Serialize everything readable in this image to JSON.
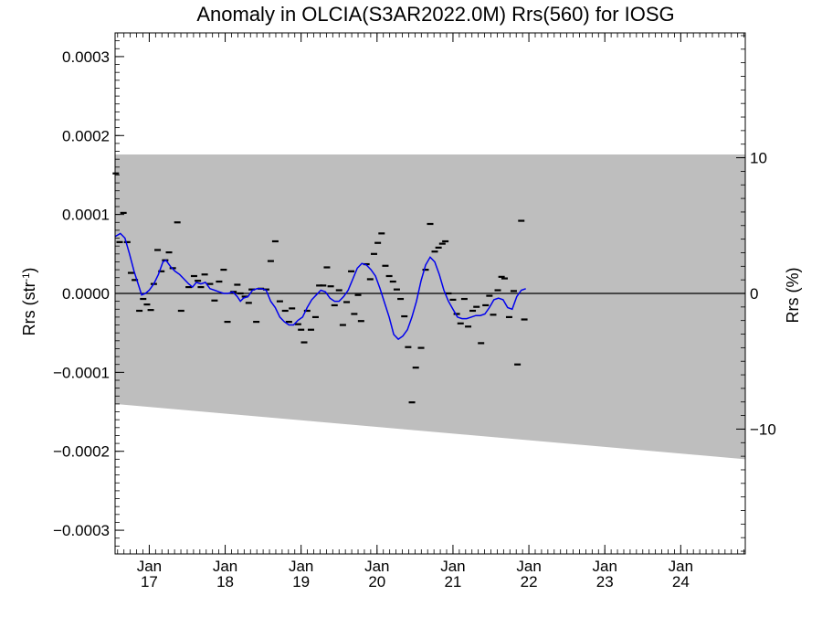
{
  "chart_data": {
    "type": "scatter",
    "title": "Anomaly in OLCIA(S3AR2022.0M) Rrs(560) for IOSG",
    "ylabel_left_base": "Rrs (str",
    "ylabel_left_exp": "-1",
    "ylabel_left_tail": ")",
    "ylabel_right": "Rrs (%)",
    "x_unit": "year",
    "xlim": [
      2016.55,
      2024.85
    ],
    "ylim": [
      -0.00033,
      0.00033
    ],
    "ylim_right_percent": [
      -19.2,
      19.2
    ],
    "grid": false,
    "x_ticks": [
      {
        "month": "Jan",
        "year": "17",
        "x": 2017.0
      },
      {
        "month": "Jan",
        "year": "18",
        "x": 2018.0
      },
      {
        "month": "Jan",
        "year": "19",
        "x": 2019.0
      },
      {
        "month": "Jan",
        "year": "20",
        "x": 2020.0
      },
      {
        "month": "Jan",
        "year": "21",
        "x": 2021.0
      },
      {
        "month": "Jan",
        "year": "22",
        "x": 2022.0
      },
      {
        "month": "Jan",
        "year": "23",
        "x": 2023.0
      },
      {
        "month": "Jan",
        "year": "24",
        "x": 2024.0
      }
    ],
    "y_ticks_left": [
      {
        "label": "0.0003",
        "v": 0.0003
      },
      {
        "label": "0.0002",
        "v": 0.0002
      },
      {
        "label": "0.0001",
        "v": 0.0001
      },
      {
        "label": "0.0000",
        "v": 0.0
      },
      {
        "label": "−0.0001",
        "v": -0.0001
      },
      {
        "label": "−0.0002",
        "v": -0.0002
      },
      {
        "label": "−0.0003",
        "v": -0.0003
      }
    ],
    "y_ticks_right": [
      {
        "label": "10",
        "v": 10
      },
      {
        "label": "0",
        "v": 0
      },
      {
        "label": "−10",
        "v": -10
      }
    ],
    "band": {
      "color": "#bebebe",
      "x": [
        2016.55,
        2024.85
      ],
      "upper": [
        0.000176,
        0.000176
      ],
      "lower": [
        -0.00014,
        -0.00021
      ]
    },
    "zero_line_color": "#000000",
    "smoothed_color": "#0000ee",
    "marker_color": "#000000",
    "points": [
      [
        2016.56,
        0.000152
      ],
      [
        2016.61,
        6.5e-05
      ],
      [
        2016.66,
        0.000102
      ],
      [
        2016.71,
        6.5e-05
      ],
      [
        2016.76,
        2.6e-05
      ],
      [
        2016.81,
        1.7e-05
      ],
      [
        2016.87,
        -2.2e-05
      ],
      [
        2016.92,
        -7e-06
      ],
      [
        2016.97,
        -1.4e-05
      ],
      [
        2017.02,
        -2.1e-05
      ],
      [
        2017.06,
        1.2e-05
      ],
      [
        2017.11,
        5.5e-05
      ],
      [
        2017.16,
        2.8e-05
      ],
      [
        2017.21,
        4.2e-05
      ],
      [
        2017.26,
        5.2e-05
      ],
      [
        2017.31,
        3.2e-05
      ],
      [
        2017.37,
        9e-05
      ],
      [
        2017.42,
        -2.2e-05
      ],
      [
        2017.52,
        8e-06
      ],
      [
        2017.59,
        2.2e-05
      ],
      [
        2017.64,
        1.6e-05
      ],
      [
        2017.68,
        8e-06
      ],
      [
        2017.73,
        2.4e-05
      ],
      [
        2017.8,
        1.2e-05
      ],
      [
        2017.86,
        -9e-06
      ],
      [
        2017.92,
        1.5e-05
      ],
      [
        2017.98,
        3e-05
      ],
      [
        2018.03,
        -3.6e-05
      ],
      [
        2018.11,
        2e-06
      ],
      [
        2018.16,
        1.1e-05
      ],
      [
        2018.2,
        0.0
      ],
      [
        2018.26,
        -4e-06
      ],
      [
        2018.31,
        -1.2e-05
      ],
      [
        2018.35,
        5e-06
      ],
      [
        2018.41,
        -3.6e-05
      ],
      [
        2018.47,
        6e-06
      ],
      [
        2018.54,
        5e-06
      ],
      [
        2018.6,
        4.1e-05
      ],
      [
        2018.66,
        6.6e-05
      ],
      [
        2018.72,
        -1e-05
      ],
      [
        2018.79,
        -2.2e-05
      ],
      [
        2018.84,
        -3.6e-05
      ],
      [
        2018.88,
        -1.9e-05
      ],
      [
        2018.96,
        -3.9e-05
      ],
      [
        2019.0,
        -4.6e-05
      ],
      [
        2019.04,
        -6.2e-05
      ],
      [
        2019.08,
        -2.2e-05
      ],
      [
        2019.13,
        -4.6e-05
      ],
      [
        2019.19,
        -3e-05
      ],
      [
        2019.24,
        1e-05
      ],
      [
        2019.29,
        1e-05
      ],
      [
        2019.34,
        3.3e-05
      ],
      [
        2019.39,
        9e-06
      ],
      [
        2019.44,
        -1.5e-05
      ],
      [
        2019.5,
        4e-06
      ],
      [
        2019.55,
        -4e-05
      ],
      [
        2019.6,
        -1.1e-05
      ],
      [
        2019.66,
        2.8e-05
      ],
      [
        2019.7,
        -2.6e-05
      ],
      [
        2019.75,
        -2e-06
      ],
      [
        2019.79,
        -3.5e-05
      ],
      [
        2019.86,
        3.7e-05
      ],
      [
        2019.91,
        1.8e-05
      ],
      [
        2019.96,
        5e-05
      ],
      [
        2020.01,
        6.4e-05
      ],
      [
        2020.06,
        7.6e-05
      ],
      [
        2020.11,
        3.5e-05
      ],
      [
        2020.16,
        2.2e-05
      ],
      [
        2020.21,
        1.5e-05
      ],
      [
        2020.26,
        5e-06
      ],
      [
        2020.31,
        -7e-06
      ],
      [
        2020.36,
        -2.9e-05
      ],
      [
        2020.41,
        -6.8e-05
      ],
      [
        2020.46,
        -0.000138
      ],
      [
        2020.51,
        -9.4e-05
      ],
      [
        2020.58,
        -6.9e-05
      ],
      [
        2020.64,
        3e-05
      ],
      [
        2020.7,
        8.8e-05
      ],
      [
        2020.76,
        5.3e-05
      ],
      [
        2020.81,
        5.8e-05
      ],
      [
        2020.86,
        6.3e-05
      ],
      [
        2020.9,
        6.6e-05
      ],
      [
        2020.94,
        0.0
      ],
      [
        2021.0,
        -8e-06
      ],
      [
        2021.05,
        -2.6e-05
      ],
      [
        2021.1,
        -3.8e-05
      ],
      [
        2021.15,
        -7e-06
      ],
      [
        2021.2,
        -4.2e-05
      ],
      [
        2021.26,
        -2.2e-05
      ],
      [
        2021.31,
        -1.7e-05
      ],
      [
        2021.37,
        -6.3e-05
      ],
      [
        2021.43,
        -1.5e-05
      ],
      [
        2021.48,
        -3e-06
      ],
      [
        2021.53,
        -2.7e-05
      ],
      [
        2021.59,
        4e-06
      ],
      [
        2021.64,
        2.1e-05
      ],
      [
        2021.68,
        1.9e-05
      ],
      [
        2021.74,
        -3e-05
      ],
      [
        2021.8,
        3e-06
      ],
      [
        2021.85,
        -9e-05
      ],
      [
        2021.9,
        9.2e-05
      ],
      [
        2021.94,
        -3.3e-05
      ]
    ],
    "smoothed": [
      [
        2016.55,
        7.2e-05
      ],
      [
        2016.62,
        7.6e-05
      ],
      [
        2016.68,
        7e-05
      ],
      [
        2016.74,
        5e-05
      ],
      [
        2016.8,
        2.8e-05
      ],
      [
        2016.86,
        1e-05
      ],
      [
        2016.9,
        -2e-06
      ],
      [
        2016.95,
        0.0
      ],
      [
        2017.0,
        4e-06
      ],
      [
        2017.06,
        1.2e-05
      ],
      [
        2017.12,
        2.4e-05
      ],
      [
        2017.18,
        4e-05
      ],
      [
        2017.22,
        4.2e-05
      ],
      [
        2017.28,
        3.4e-05
      ],
      [
        2017.34,
        2.8e-05
      ],
      [
        2017.4,
        2.4e-05
      ],
      [
        2017.46,
        1.8e-05
      ],
      [
        2017.52,
        1.2e-05
      ],
      [
        2017.57,
        8e-06
      ],
      [
        2017.62,
        1.4e-05
      ],
      [
        2017.68,
        1.2e-05
      ],
      [
        2017.74,
        1.4e-05
      ],
      [
        2017.8,
        6e-06
      ],
      [
        2017.86,
        4e-06
      ],
      [
        2017.92,
        2e-06
      ],
      [
        2017.98,
        0.0
      ],
      [
        2018.04,
        0.0
      ],
      [
        2018.1,
        2e-06
      ],
      [
        2018.16,
        -4e-06
      ],
      [
        2018.2,
        -1e-05
      ],
      [
        2018.24,
        -6e-06
      ],
      [
        2018.3,
        -4e-06
      ],
      [
        2018.36,
        4e-06
      ],
      [
        2018.42,
        6e-06
      ],
      [
        2018.48,
        6e-06
      ],
      [
        2018.54,
        4e-06
      ],
      [
        2018.6,
        -1e-05
      ],
      [
        2018.66,
        -1.8e-05
      ],
      [
        2018.72,
        -3e-05
      ],
      [
        2018.78,
        -3.6e-05
      ],
      [
        2018.84,
        -4e-05
      ],
      [
        2018.9,
        -4e-05
      ],
      [
        2018.96,
        -3.4e-05
      ],
      [
        2019.02,
        -3e-05
      ],
      [
        2019.08,
        -1.8e-05
      ],
      [
        2019.14,
        -8e-06
      ],
      [
        2019.2,
        -2e-06
      ],
      [
        2019.26,
        4e-06
      ],
      [
        2019.32,
        2e-06
      ],
      [
        2019.38,
        -6e-06
      ],
      [
        2019.44,
        -1e-05
      ],
      [
        2019.5,
        -1e-05
      ],
      [
        2019.56,
        -4e-06
      ],
      [
        2019.62,
        4e-06
      ],
      [
        2019.68,
        1.8e-05
      ],
      [
        2019.74,
        3.2e-05
      ],
      [
        2019.8,
        3.8e-05
      ],
      [
        2019.86,
        3.6e-05
      ],
      [
        2019.92,
        3e-05
      ],
      [
        2019.98,
        2.2e-05
      ],
      [
        2020.04,
        6e-06
      ],
      [
        2020.1,
        -1.2e-05
      ],
      [
        2020.16,
        -3e-05
      ],
      [
        2020.22,
        -5.2e-05
      ],
      [
        2020.28,
        -5.8e-05
      ],
      [
        2020.34,
        -5.4e-05
      ],
      [
        2020.4,
        -4.6e-05
      ],
      [
        2020.46,
        -3e-05
      ],
      [
        2020.52,
        -1e-05
      ],
      [
        2020.58,
        1.6e-05
      ],
      [
        2020.64,
        3.6e-05
      ],
      [
        2020.7,
        4.6e-05
      ],
      [
        2020.76,
        4e-05
      ],
      [
        2020.82,
        2.4e-05
      ],
      [
        2020.88,
        4e-06
      ],
      [
        2020.94,
        -1e-05
      ],
      [
        2021.0,
        -2e-05
      ],
      [
        2021.06,
        -3e-05
      ],
      [
        2021.12,
        -3.2e-05
      ],
      [
        2021.18,
        -3.2e-05
      ],
      [
        2021.24,
        -3e-05
      ],
      [
        2021.3,
        -2.8e-05
      ],
      [
        2021.36,
        -2.8e-05
      ],
      [
        2021.42,
        -2.6e-05
      ],
      [
        2021.48,
        -1.8e-05
      ],
      [
        2021.54,
        -8e-06
      ],
      [
        2021.6,
        -6e-06
      ],
      [
        2021.66,
        -8e-06
      ],
      [
        2021.72,
        -1.8e-05
      ],
      [
        2021.78,
        -2e-05
      ],
      [
        2021.84,
        -4e-06
      ],
      [
        2021.9,
        4e-06
      ],
      [
        2021.96,
        6e-06
      ]
    ]
  }
}
